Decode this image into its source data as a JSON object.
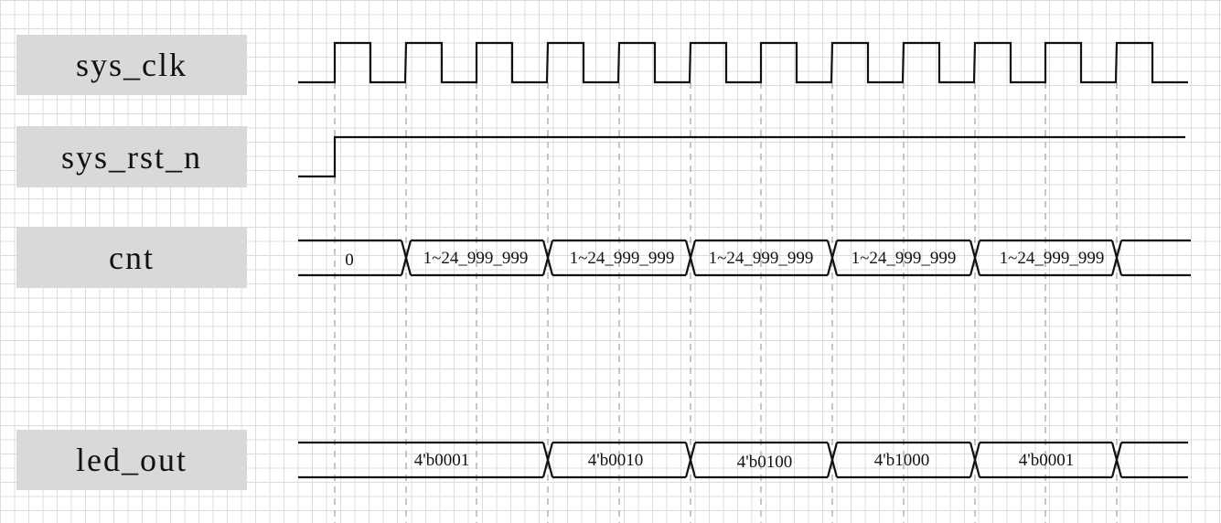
{
  "signals": {
    "sys_clk": "sys_clk",
    "sys_rst_n": "sys_rst_n",
    "cnt": "cnt",
    "led_out": "led_out"
  },
  "cnt_values": [
    "0",
    "1~24_999_999",
    "1~24_999_999",
    "1~24_999_999",
    "1~24_999_999",
    "1~24_999_999"
  ],
  "led_values": [
    "4'b0001",
    "4'b0010",
    "4'b0100",
    "4'b1000",
    "4'b0001"
  ],
  "colors": {
    "line": "#111111",
    "label_bg": "#d9d9d9",
    "grid": "#dcdcdc",
    "marker": "#b8b8b8"
  }
}
